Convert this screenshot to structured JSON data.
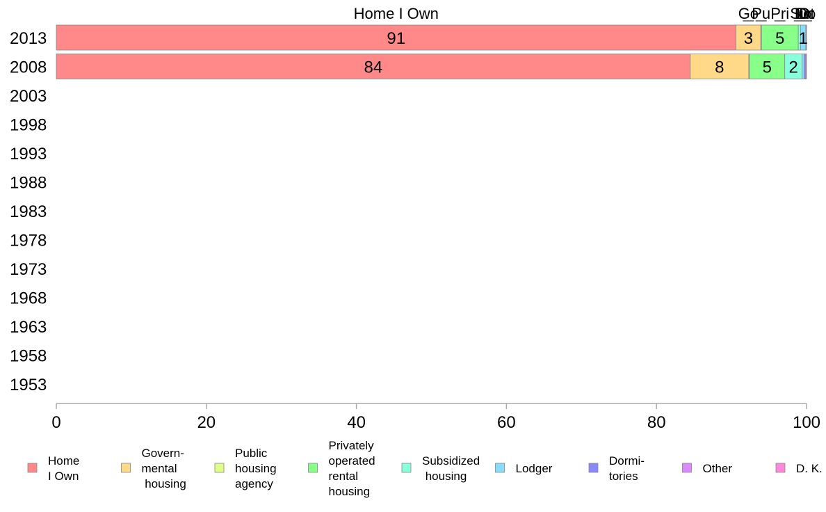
{
  "chart_data": {
    "type": "bar",
    "orientation": "horizontal",
    "stacked": true,
    "categories": [
      "2013",
      "2008",
      "2003",
      "1998",
      "1993",
      "1988",
      "1983",
      "1978",
      "1973",
      "1968",
      "1963",
      "1958",
      "1953"
    ],
    "xlim": [
      0,
      100
    ],
    "xticks": [
      0,
      20,
      40,
      60,
      80,
      100
    ],
    "grid": false,
    "legend_position": "bottom",
    "series": [
      {
        "name": "Home I Own",
        "legend_lines": [
          "Home",
          "I Own"
        ],
        "short": "Home I Own",
        "color": "#ff8888",
        "values": [
          90.6,
          84.5,
          null,
          null,
          null,
          null,
          null,
          null,
          null,
          null,
          null,
          null,
          null
        ],
        "labels": [
          "91",
          "84",
          "",
          "",
          "",
          "",
          "",
          "",
          "",
          "",
          "",
          "",
          ""
        ]
      },
      {
        "name": "Governmental housing",
        "legend_lines": [
          "Govern-",
          "mental",
          " housing"
        ],
        "short": "Go",
        "color": "#ffd888",
        "values": [
          3.3,
          7.8,
          null,
          null,
          null,
          null,
          null,
          null,
          null,
          null,
          null,
          null,
          null
        ],
        "labels": [
          "3",
          "8",
          "",
          "",
          "",
          "",
          "",
          "",
          "",
          "",
          "",
          "",
          ""
        ]
      },
      {
        "name": "Public housing agency",
        "legend_lines": [
          "Public",
          "housing",
          "agency"
        ],
        "short": "Pu",
        "color": "#ddff88",
        "values": [
          0.1,
          0.1,
          null,
          null,
          null,
          null,
          null,
          null,
          null,
          null,
          null,
          null,
          null
        ],
        "labels": [
          "",
          "",
          "",
          "",
          "",
          "",
          "",
          "",
          "",
          "",
          "",
          "",
          ""
        ]
      },
      {
        "name": "Privately operated rental housing",
        "legend_lines": [
          "Privately",
          "operated",
          "rental",
          "housing"
        ],
        "short": "Pri",
        "color": "#88ff88",
        "values": [
          4.9,
          4.7,
          null,
          null,
          null,
          null,
          null,
          null,
          null,
          null,
          null,
          null,
          null
        ],
        "labels": [
          "5",
          "5",
          "",
          "",
          "",
          "",
          "",
          "",
          "",
          "",
          "",
          "",
          ""
        ]
      },
      {
        "name": "Subsidized housing",
        "legend_lines": [
          "Subsidized",
          " housing"
        ],
        "short": "Su",
        "color": "#88ffdd",
        "values": [
          0.3,
          2.3,
          null,
          null,
          null,
          null,
          null,
          null,
          null,
          null,
          null,
          null,
          null
        ],
        "labels": [
          "",
          "2",
          "",
          "",
          "",
          "",
          "",
          "",
          "",
          "",
          "",
          "",
          ""
        ]
      },
      {
        "name": "Lodger",
        "legend_lines": [
          "Lodger"
        ],
        "short": "Lo",
        "color": "#88ddff",
        "values": [
          0.7,
          0.3,
          null,
          null,
          null,
          null,
          null,
          null,
          null,
          null,
          null,
          null,
          null
        ],
        "labels": [
          "1",
          "",
          "",
          "",
          "",
          "",
          "",
          "",
          "",
          "",
          "",
          "",
          ""
        ]
      },
      {
        "name": "Dormitories",
        "legend_lines": [
          "Dormi-",
          "tories"
        ],
        "short": "Do",
        "color": "#8888ff",
        "values": [
          0.05,
          0.2,
          null,
          null,
          null,
          null,
          null,
          null,
          null,
          null,
          null,
          null,
          null
        ],
        "labels": [
          "",
          "",
          "",
          "",
          "",
          "",
          "",
          "",
          "",
          "",
          "",
          "",
          ""
        ]
      },
      {
        "name": "Other",
        "legend_lines": [
          "Other"
        ],
        "short": "Ot",
        "color": "#dd88ff",
        "values": [
          0.05,
          0.1,
          null,
          null,
          null,
          null,
          null,
          null,
          null,
          null,
          null,
          null,
          null
        ],
        "labels": [
          "",
          "",
          "",
          "",
          "",
          "",
          "",
          "",
          "",
          "",
          "",
          "",
          ""
        ]
      },
      {
        "name": "D. K.",
        "legend_lines": [
          "D. K."
        ],
        "short": "D.",
        "color": "#ff88dd",
        "values": [
          0.0,
          0.0,
          null,
          null,
          null,
          null,
          null,
          null,
          null,
          null,
          null,
          null,
          null
        ],
        "labels": [
          "",
          "",
          "",
          "",
          "",
          "",
          "",
          "",
          "",
          "",
          "",
          "",
          ""
        ]
      }
    ]
  }
}
